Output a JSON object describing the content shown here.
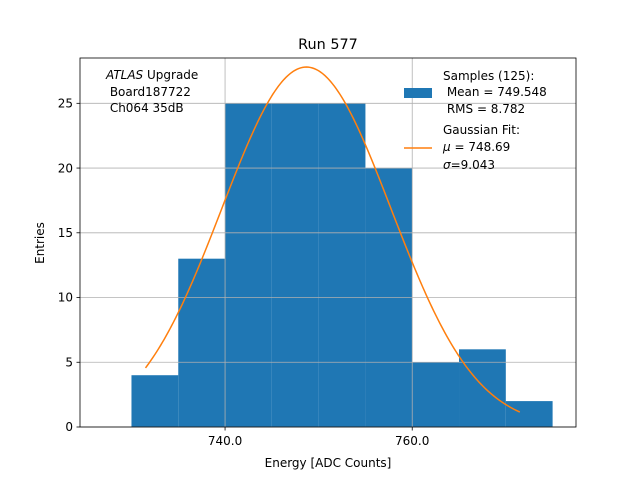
{
  "chart_data": {
    "type": "bar",
    "title": "Run 577",
    "xlabel": "Energy [ADC Counts]",
    "ylabel": "Entries",
    "xlim": [
      724.5,
      777.5
    ],
    "ylim": [
      0,
      28.5
    ],
    "xticks": [
      740.0,
      760.0
    ],
    "xtick_labels": [
      "740.0",
      "760.0"
    ],
    "yticks": [
      0,
      5,
      10,
      15,
      20,
      25
    ],
    "ytick_labels": [
      "0",
      "5",
      "10",
      "15",
      "20",
      "25"
    ],
    "grid": true,
    "legend_position": "upper-right",
    "annotation": {
      "italic": "ATLAS",
      "rest": " Upgrade",
      "line2": " Board187722",
      "line3": " Ch064 35dB"
    },
    "histogram": {
      "bin_edges": [
        730,
        735,
        740,
        745,
        750,
        755,
        760,
        765,
        770,
        775
      ],
      "counts": [
        4,
        13,
        25,
        25,
        25,
        20,
        5,
        6,
        2
      ],
      "color": "#1f77b4",
      "legend": {
        "line1": "Samples (125):",
        "line2": " Mean = 749.548",
        "line3": " RMS = 8.782"
      }
    },
    "fit": {
      "type": "gaussian",
      "color": "#ff7f0e",
      "x_range": [
        731.5,
        771.5
      ],
      "amplitude": 27.8,
      "mu": 748.69,
      "sigma": 9.043,
      "legend": {
        "line1": "Gaussian Fit:",
        "line2_sym": "μ",
        "line2_rest": " = 748.69",
        "line3_sym": "σ",
        "line3_rest": "=9.043"
      }
    }
  }
}
